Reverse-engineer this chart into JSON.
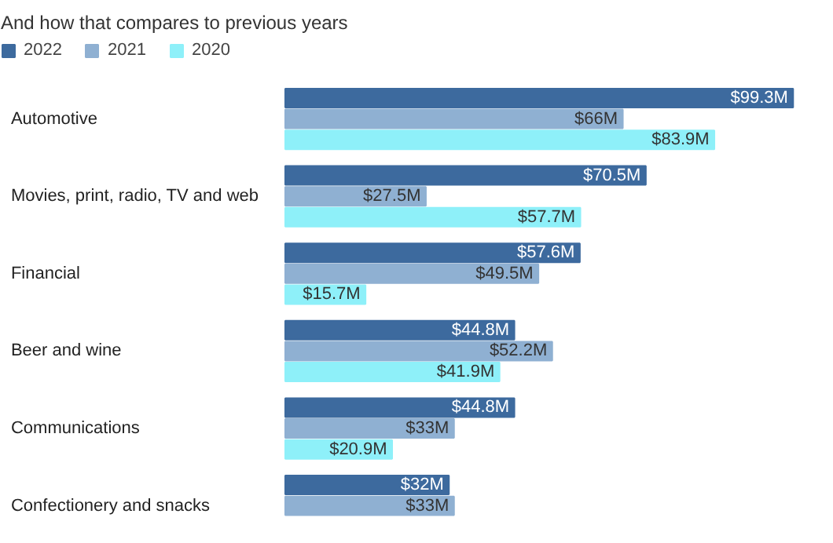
{
  "chart_data": {
    "type": "bar",
    "orientation": "horizontal",
    "subtitle": "And how that compares to previous years",
    "categories": [
      "Automotive",
      "Movies, print, radio, TV and web",
      "Financial",
      "Beer and wine",
      "Communications",
      "Confectionery and snacks"
    ],
    "series": [
      {
        "name": "2022",
        "color": "#3d6a9e",
        "values": [
          99.3,
          70.5,
          57.6,
          44.8,
          44.8,
          32
        ],
        "value_labels": [
          "$99.3M",
          "$70.5M",
          "$57.6M",
          "$44.8M",
          "$44.8M",
          "$32M"
        ]
      },
      {
        "name": "2021",
        "color": "#8fb0d2",
        "values": [
          66,
          27.5,
          49.5,
          52.2,
          33,
          33
        ],
        "value_labels": [
          "$66M",
          "$27.5M",
          "$49.5M",
          "$52.2M",
          "$33M",
          "$33M"
        ]
      },
      {
        "name": "2020",
        "color": "#8ef0f9",
        "values": [
          83.9,
          57.7,
          15.7,
          41.9,
          20.9,
          null
        ],
        "value_labels": [
          "$83.9M",
          "$57.7M",
          "$15.7M",
          "$41.9M",
          "$20.9M",
          null
        ]
      }
    ],
    "legend": "top left"
  }
}
